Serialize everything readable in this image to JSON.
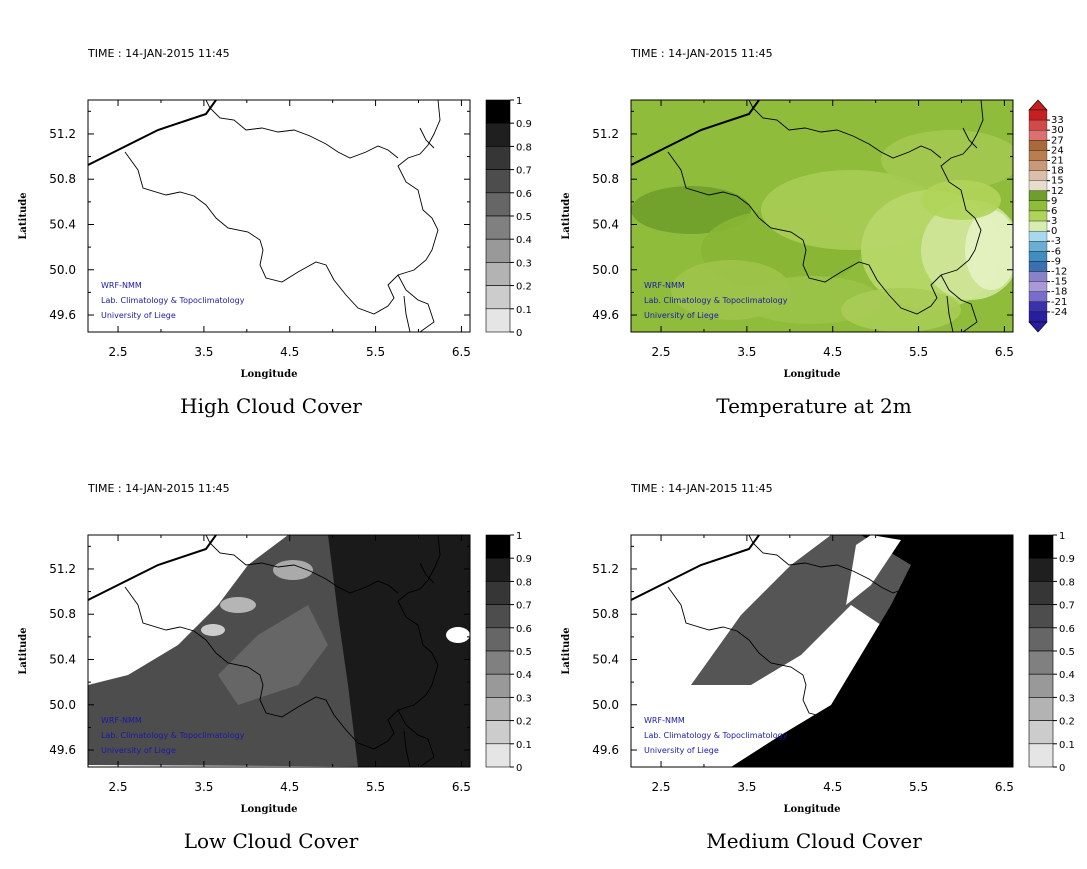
{
  "credits": [
    "WRF-NMM",
    "Lab. Climatology & Topoclimatology",
    "University of Liege"
  ],
  "panels": [
    {
      "id": "high-cloud",
      "time_label": "TIME : 14-JAN-2015 11:45",
      "title": "High Cloud Cover",
      "xlabel": "Longitude",
      "ylabel": "Latitude",
      "xticks": [
        "2.5",
        "3.5",
        "4.5",
        "5.5",
        "6.5"
      ],
      "yticks": [
        "51.2",
        "50.8",
        "50.4",
        "50.0",
        "49.6"
      ],
      "colorbar": {
        "type": "gray",
        "labels": [
          "1",
          "0.9",
          "0.8",
          "0.7",
          "0.6",
          "0.5",
          "0.4",
          "0.3",
          "0.2",
          "0.1",
          "0"
        ],
        "colors": [
          "#000000",
          "#1f1f1f",
          "#363636",
          "#4d4d4d",
          "#666666",
          "#808080",
          "#999999",
          "#b3b3b3",
          "#cccccc",
          "#e5e5e5",
          "#ffffff"
        ]
      },
      "field": "empty"
    },
    {
      "id": "temperature",
      "time_label": "TIME : 14-JAN-2015 11:45",
      "title": "Temperature at 2m",
      "xlabel": "Longitude",
      "ylabel": "Latitude",
      "xticks": [
        "2.5",
        "3.5",
        "4.5",
        "5.5",
        "6.5"
      ],
      "yticks": [
        "51.2",
        "50.8",
        "50.4",
        "50.0",
        "49.6"
      ],
      "colorbar": {
        "type": "temp",
        "labels": [
          "33",
          "30",
          "27",
          "24",
          "21",
          "18",
          "15",
          "12",
          "9",
          "6",
          "3",
          "0",
          "-3",
          "-6",
          "-9",
          "-12",
          "-15",
          "-18",
          "-21",
          "-24"
        ],
        "colors": [
          "#c42020",
          "#d04a4a",
          "#dc7070",
          "#a86a3a",
          "#b87e50",
          "#c99a78",
          "#dcbfaa",
          "#e8dccd",
          "#6f9e2a",
          "#8fbc3a",
          "#b0d45a",
          "#d8ecae",
          "#a8d8ec",
          "#6aaed4",
          "#3f8ebf",
          "#3a6fb0",
          "#8a82c8",
          "#a89ad6",
          "#7a6ccc",
          "#3a32a8",
          "#2a1ea0"
        ]
      },
      "field": "temperature"
    },
    {
      "id": "low-cloud",
      "time_label": "TIME : 14-JAN-2015 11:45",
      "title": "Low Cloud Cover",
      "xlabel": "Longitude",
      "ylabel": "Latitude",
      "xticks": [
        "2.5",
        "3.5",
        "4.5",
        "5.5",
        "6.5"
      ],
      "yticks": [
        "51.2",
        "50.8",
        "50.4",
        "50.0",
        "49.6"
      ],
      "colorbar": {
        "type": "gray",
        "labels": [
          "1",
          "0.9",
          "0.8",
          "0.7",
          "0.6",
          "0.5",
          "0.4",
          "0.3",
          "0.2",
          "0.1",
          "0"
        ],
        "colors": [
          "#000000",
          "#1f1f1f",
          "#363636",
          "#4d4d4d",
          "#666666",
          "#808080",
          "#999999",
          "#b3b3b3",
          "#cccccc",
          "#e5e5e5",
          "#ffffff"
        ]
      },
      "field": "low"
    },
    {
      "id": "medium-cloud",
      "time_label": "TIME : 14-JAN-2015 11:45",
      "title": "Medium Cloud Cover",
      "xlabel": "Longitude",
      "ylabel": "Latitude",
      "xticks": [
        "2.5",
        "3.5",
        "4.5",
        "5.5",
        "6.5"
      ],
      "yticks": [
        "51.2",
        "50.8",
        "50.4",
        "50.0",
        "49.6"
      ],
      "colorbar": {
        "type": "gray",
        "labels": [
          "1",
          "0.9",
          "0.8",
          "0.7",
          "0.6",
          "0.5",
          "0.4",
          "0.3",
          "0.2",
          "0.1",
          "0"
        ],
        "colors": [
          "#000000",
          "#1f1f1f",
          "#363636",
          "#4d4d4d",
          "#666666",
          "#808080",
          "#999999",
          "#b3b3b3",
          "#cccccc",
          "#e5e5e5",
          "#ffffff"
        ]
      },
      "field": "medium"
    }
  ]
}
